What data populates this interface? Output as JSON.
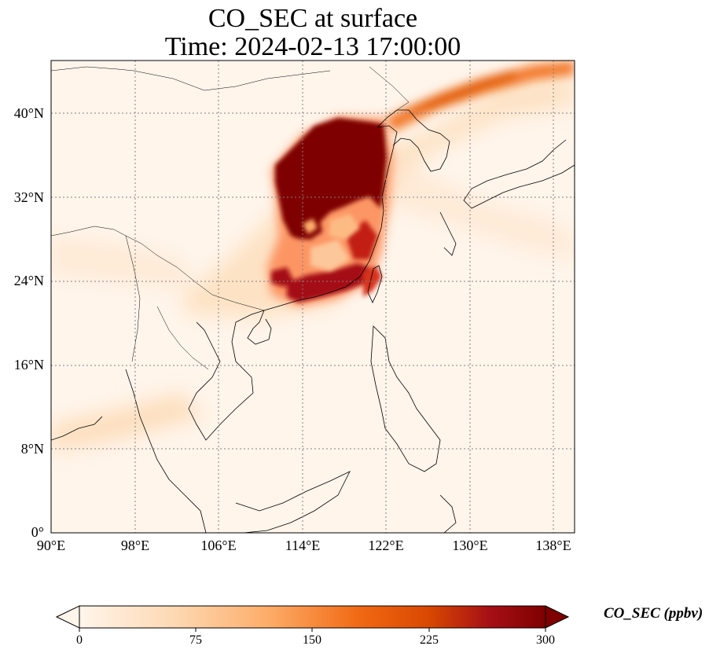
{
  "title": {
    "line1": "CO_SEC at surface",
    "line2": "Time: 2024-02-13 17:00:00"
  },
  "map": {
    "lon_range": [
      90,
      140
    ],
    "lat_range": [
      0,
      45
    ],
    "lat_ticks": [
      "0°",
      "8°N",
      "16°N",
      "24°N",
      "32°N",
      "40°N"
    ],
    "lon_ticks": [
      "90°E",
      "98°E",
      "106°E",
      "114°E",
      "122°E",
      "130°E",
      "138°E"
    ]
  },
  "colorbar": {
    "label": "CO_SEC (ppbv)",
    "ticks": [
      "0",
      "75",
      "150",
      "225",
      "300"
    ],
    "colormap": [
      "#fff5eb",
      "#fdd9b4",
      "#fdae6b",
      "#f16913",
      "#d94801",
      "#a50f15",
      "#7f0000"
    ]
  }
}
